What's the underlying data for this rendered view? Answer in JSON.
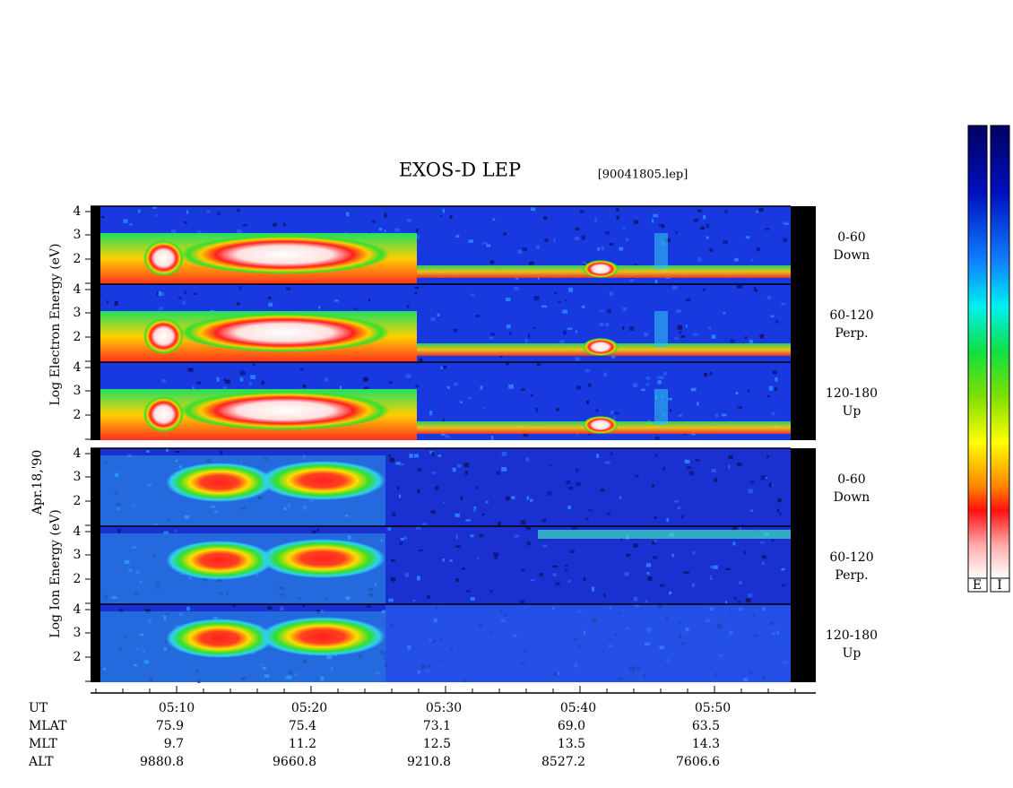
{
  "header": {
    "title": "EXOS-D LEP",
    "file": "[90041805.lep]"
  },
  "date": "Apr.18,'90",
  "y_labels": {
    "electron": "Log Electron Energy (eV)",
    "ion": "Log Ion Energy (eV)"
  },
  "panels": [
    {
      "yticks": [
        "4",
        "3",
        "2"
      ],
      "angle": "0-60",
      "direction": "Down"
    },
    {
      "yticks": [
        "4",
        "3",
        "2"
      ],
      "angle": "60-120",
      "direction": "Perp."
    },
    {
      "yticks": [
        "4",
        "3",
        "2"
      ],
      "angle": "120-180",
      "direction": "Up"
    },
    {
      "yticks": [
        "4",
        "3",
        "2"
      ],
      "angle": "0-60",
      "direction": "Down"
    },
    {
      "yticks": [
        "4",
        "3",
        "2"
      ],
      "angle": "60-120",
      "direction": "Perp."
    },
    {
      "yticks": [
        "4",
        "3",
        "2"
      ],
      "angle": "120-180",
      "direction": "Up"
    }
  ],
  "ephemeris": [
    {
      "label": "UT",
      "values": [
        "05:10",
        "05:20",
        "05:30",
        "05:40",
        "05:50"
      ]
    },
    {
      "label": "MLAT",
      "values": [
        "75.9",
        "75.4",
        "73.1",
        "69.0",
        "63.5"
      ]
    },
    {
      "label": "MLT",
      "values": [
        "9.7",
        "11.2",
        "12.5",
        "13.5",
        "14.3"
      ]
    },
    {
      "label": "ALT",
      "values": [
        "9880.8",
        "9660.8",
        "9210.8",
        "8527.2",
        "7606.6"
      ]
    }
  ],
  "colorbar_labels": [
    "E",
    "I"
  ]
}
